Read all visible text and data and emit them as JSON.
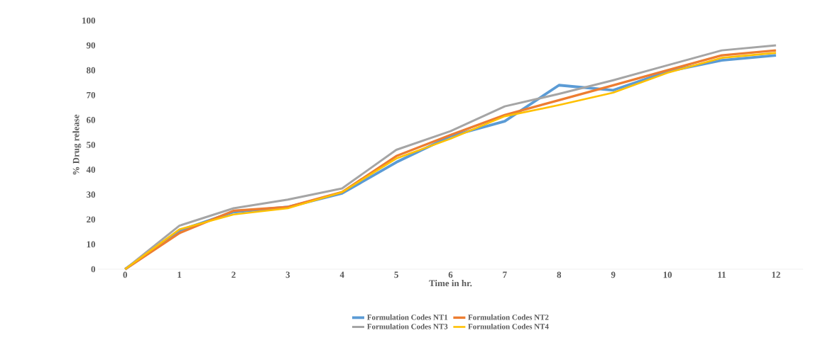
{
  "chart_data": {
    "type": "line",
    "xlabel": "Time in hr.",
    "ylabel": "% Drug release",
    "categories": [
      "0",
      "1",
      "2",
      "3",
      "4",
      "5",
      "6",
      "7",
      "8",
      "9",
      "10",
      "11",
      "12"
    ],
    "series": [
      {
        "name": "Formulation Codes NT1",
        "color": "#5b9bd5",
        "values": [
          0,
          15.5,
          23,
          25,
          30.5,
          43,
          53.5,
          59.5,
          74,
          72,
          79.5,
          84,
          86
        ]
      },
      {
        "name": "Formulation Codes NT2",
        "color": "#ed7d31",
        "values": [
          0,
          14.5,
          23.5,
          25,
          31,
          45.5,
          54,
          62,
          68,
          74,
          80,
          86,
          88
        ]
      },
      {
        "name": "Formulation Codes NT3",
        "color": "#a5a5a5",
        "values": [
          0,
          17.5,
          24.5,
          28,
          32.5,
          48,
          55.5,
          65.5,
          70.5,
          76,
          82,
          88,
          90
        ]
      },
      {
        "name": "Formulation Codes NT4",
        "color": "#ffc000",
        "values": [
          0,
          16,
          22,
          24.5,
          31,
          44.5,
          52.5,
          61.5,
          66,
          71,
          79,
          85,
          87
        ]
      }
    ],
    "ylim": [
      0,
      100
    ],
    "yticks": [
      0,
      10,
      20,
      30,
      40,
      50,
      60,
      70,
      80,
      90,
      100
    ],
    "grid": false,
    "legend": "bottom",
    "marker": "none",
    "line_style": "solid"
  }
}
